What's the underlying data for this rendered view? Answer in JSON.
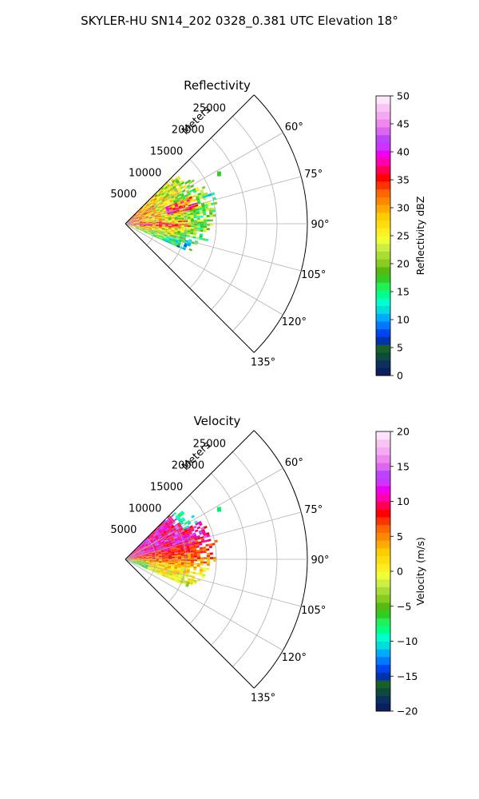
{
  "figure": {
    "suptitle": "SKYLER-HU  SN14_202  0328_0.381 UTC Elevation 18°",
    "range_axis_label": "Meters"
  },
  "chart_data": [
    {
      "type": "polar-sector",
      "title": "Reflectivity",
      "theta_range_deg": [
        45,
        135
      ],
      "theta_ticks": [
        {
          "deg": 60,
          "label": "60°"
        },
        {
          "deg": 75,
          "label": "75°"
        },
        {
          "deg": 90,
          "label": "90°"
        },
        {
          "deg": 105,
          "label": "105°"
        },
        {
          "deg": 120,
          "label": "120°"
        },
        {
          "deg": 135,
          "label": "135°"
        }
      ],
      "range_max": 30000,
      "range_ticks": [
        {
          "value": 5000,
          "label": "5000"
        },
        {
          "value": 10000,
          "label": "10000"
        },
        {
          "value": 15000,
          "label": "15000"
        },
        {
          "value": 20000,
          "label": "20000"
        },
        {
          "value": 25000,
          "label": "25000"
        }
      ],
      "grid": true,
      "colorbar": {
        "label": "Reflectivity dBZ",
        "vmin": 0,
        "vmax": 50,
        "ticks": [
          "0",
          "5",
          "10",
          "15",
          "20",
          "25",
          "30",
          "35",
          "40",
          "45",
          "50"
        ],
        "colors": [
          "#0a1f5c",
          "#0c2f60",
          "#0d4a3a",
          "#1a5e2a",
          "#0033aa",
          "#0044ee",
          "#0077ff",
          "#00aaff",
          "#00dddd",
          "#00ffcc",
          "#00ff88",
          "#22ee55",
          "#33cc22",
          "#55bb11",
          "#88cc22",
          "#aadd33",
          "#ccee44",
          "#eeff33",
          "#ffee22",
          "#ffdd11",
          "#ffcc00",
          "#ffaa00",
          "#ff8800",
          "#ff6600",
          "#ff3300",
          "#ff0000",
          "#ff0055",
          "#ff00aa",
          "#ee00ee",
          "#cc33ff",
          "#bb44ff",
          "#dd66ee",
          "#ee88ee",
          "#f4aaf0",
          "#f8c4f4",
          "#fde4fb"
        ]
      },
      "echo": {
        "theta_deg": [
          45,
          114
        ],
        "range_m": [
          0,
          15000
        ],
        "isolated_cell": {
          "theta_deg": 62,
          "range_m": 17500
        }
      }
    },
    {
      "type": "polar-sector",
      "title": "Velocity",
      "theta_range_deg": [
        45,
        135
      ],
      "theta_ticks": [
        {
          "deg": 60,
          "label": "60°"
        },
        {
          "deg": 75,
          "label": "75°"
        },
        {
          "deg": 90,
          "label": "90°"
        },
        {
          "deg": 105,
          "label": "105°"
        },
        {
          "deg": 120,
          "label": "120°"
        },
        {
          "deg": 135,
          "label": "135°"
        }
      ],
      "range_max": 30000,
      "range_ticks": [
        {
          "value": 5000,
          "label": "5000"
        },
        {
          "value": 10000,
          "label": "10000"
        },
        {
          "value": 15000,
          "label": "15000"
        },
        {
          "value": 20000,
          "label": "20000"
        },
        {
          "value": 25000,
          "label": "25000"
        }
      ],
      "grid": true,
      "colorbar": {
        "label": "Velocity (m/s)",
        "vmin": -20,
        "vmax": 20,
        "ticks": [
          "−20",
          "−15",
          "−10",
          "−5",
          "0",
          "5",
          "10",
          "15",
          "20"
        ],
        "colors": [
          "#0a1f5c",
          "#0c2f60",
          "#0d4a3a",
          "#1a5e2a",
          "#0033aa",
          "#0044ee",
          "#0077ff",
          "#00aaff",
          "#00dddd",
          "#00ffcc",
          "#00ff88",
          "#22ee55",
          "#33cc22",
          "#55bb11",
          "#88cc22",
          "#aadd33",
          "#ccee44",
          "#eeff33",
          "#ffee22",
          "#ffdd11",
          "#ffcc00",
          "#ffaa00",
          "#ff8800",
          "#ff6600",
          "#ff3300",
          "#ff0000",
          "#ff0055",
          "#ff00aa",
          "#ee00ee",
          "#cc33ff",
          "#bb44ff",
          "#dd66ee",
          "#ee88ee",
          "#f4aaf0",
          "#f8c4f4",
          "#fde4fb"
        ]
      },
      "echo": {
        "theta_deg": [
          45,
          114
        ],
        "range_m": [
          0,
          15000
        ],
        "isolated_cell": {
          "theta_deg": 62,
          "range_m": 17500
        }
      }
    }
  ]
}
